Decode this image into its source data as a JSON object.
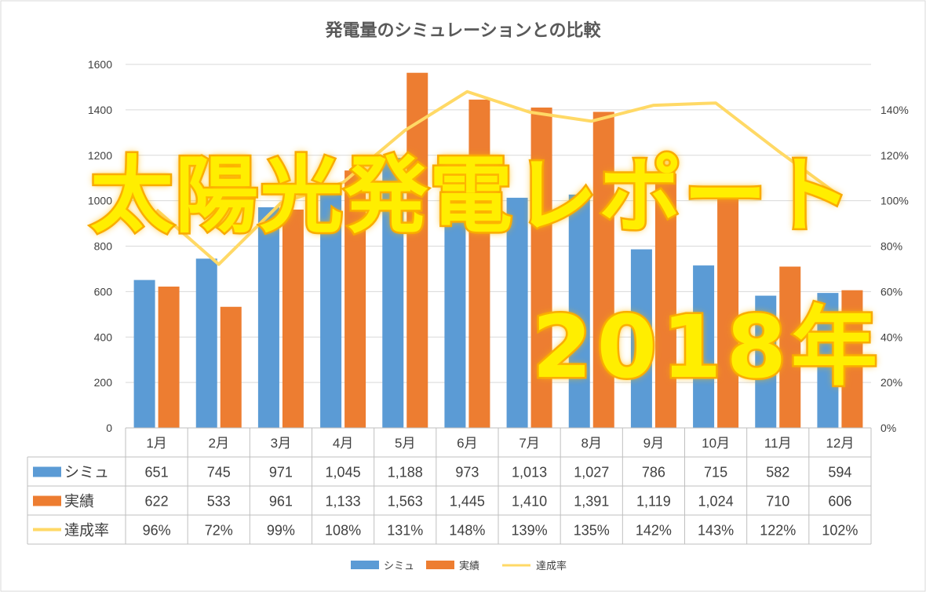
{
  "overlay": {
    "title": "太陽光発電レポート",
    "year": "2018年"
  },
  "colors": {
    "sim": "#5b9bd5",
    "actual": "#ed7d31",
    "rate": "#ffd966",
    "grid": "#d9d9d9",
    "text": "#404040",
    "title": "#595959"
  },
  "chart_data": {
    "type": "bar",
    "title": "発電量のシミュレーションとの比較",
    "categories": [
      "1月",
      "2月",
      "3月",
      "4月",
      "5月",
      "6月",
      "7月",
      "8月",
      "9月",
      "10月",
      "11月",
      "12月"
    ],
    "series": [
      {
        "name": "シミュ",
        "type": "bar",
        "axis": "left",
        "values": [
          651,
          745,
          971,
          1045,
          1188,
          973,
          1013,
          1027,
          786,
          715,
          582,
          594
        ],
        "table_values": [
          "651",
          "745",
          "971",
          "1,045",
          "1,188",
          "973",
          "1,013",
          "1,027",
          "786",
          "715",
          "582",
          "594"
        ]
      },
      {
        "name": "実績",
        "type": "bar",
        "axis": "left",
        "values": [
          622,
          533,
          961,
          1133,
          1563,
          1445,
          1410,
          1391,
          1119,
          1024,
          710,
          606
        ],
        "table_values": [
          "622",
          "533",
          "961",
          "1,133",
          "1,563",
          "1,445",
          "1,410",
          "1,391",
          "1,119",
          "1,024",
          "710",
          "606"
        ]
      },
      {
        "name": "達成率",
        "type": "line",
        "axis": "right",
        "values": [
          96,
          72,
          99,
          108,
          131,
          148,
          139,
          135,
          142,
          143,
          122,
          102
        ],
        "table_values": [
          "96%",
          "72%",
          "99%",
          "108%",
          "131%",
          "148%",
          "139%",
          "135%",
          "142%",
          "143%",
          "122%",
          "102%"
        ]
      }
    ],
    "y_left": {
      "min": 0,
      "max": 1600,
      "ticks": [
        "0",
        "200",
        "400",
        "600",
        "800",
        "1000",
        "1200",
        "1400",
        "1600"
      ]
    },
    "y_right": {
      "min": 0,
      "max": 160,
      "ticks": [
        "0%",
        "20%",
        "40%",
        "60%",
        "80%",
        "100%",
        "120%",
        "140%"
      ]
    },
    "grid": true,
    "legend_position": "bottom",
    "data_table": true
  }
}
